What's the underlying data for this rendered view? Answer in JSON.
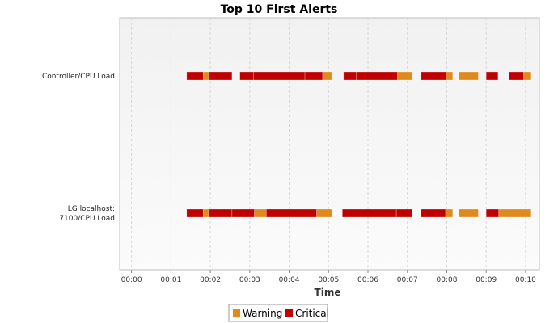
{
  "chart_data": {
    "type": "timeline",
    "title": "Top 10 First Alerts",
    "xlabel": "Time",
    "ylabel": "",
    "x_ticks": [
      "00:00",
      "00:01",
      "00:02",
      "00:03",
      "00:04",
      "00:05",
      "00:06",
      "00:07",
      "00:08",
      "00:09",
      "00:10"
    ],
    "x_range_minutes": [
      -0.3,
      10.35
    ],
    "grid": true,
    "legend_position": "bottom",
    "legend": [
      {
        "name": "Warning",
        "color": "#e08a1e"
      },
      {
        "name": "Critical",
        "color": "#c00000"
      }
    ],
    "categories": [
      {
        "label_lines": [
          "Controller/CPU Load"
        ],
        "segments": [
          {
            "start": 1.4,
            "end": 1.82,
            "status": "Critical"
          },
          {
            "start": 1.82,
            "end": 1.96,
            "status": "Warning"
          },
          {
            "start": 1.96,
            "end": 2.55,
            "status": "Critical"
          },
          {
            "start": 2.75,
            "end": 3.1,
            "status": "Critical"
          },
          {
            "start": 3.1,
            "end": 4.4,
            "status": "Critical"
          },
          {
            "start": 4.4,
            "end": 4.85,
            "status": "Critical"
          },
          {
            "start": 4.85,
            "end": 5.08,
            "status": "Warning"
          },
          {
            "start": 5.38,
            "end": 5.7,
            "status": "Critical"
          },
          {
            "start": 5.7,
            "end": 6.15,
            "status": "Critical"
          },
          {
            "start": 6.15,
            "end": 6.75,
            "status": "Critical"
          },
          {
            "start": 6.75,
            "end": 7.12,
            "status": "Warning"
          },
          {
            "start": 7.35,
            "end": 7.98,
            "status": "Critical"
          },
          {
            "start": 7.98,
            "end": 8.15,
            "status": "Warning"
          },
          {
            "start": 8.3,
            "end": 8.8,
            "status": "Warning"
          },
          {
            "start": 9.0,
            "end": 9.3,
            "status": "Critical"
          },
          {
            "start": 9.58,
            "end": 9.95,
            "status": "Critical"
          },
          {
            "start": 9.95,
            "end": 10.12,
            "status": "Warning"
          }
        ]
      },
      {
        "label_lines": [
          "LG localhost:",
          "7100/CPU Load"
        ],
        "segments": [
          {
            "start": 1.4,
            "end": 1.82,
            "status": "Critical"
          },
          {
            "start": 1.82,
            "end": 1.96,
            "status": "Warning"
          },
          {
            "start": 1.96,
            "end": 2.55,
            "status": "Critical"
          },
          {
            "start": 2.55,
            "end": 3.12,
            "status": "Critical"
          },
          {
            "start": 3.12,
            "end": 3.42,
            "status": "Warning"
          },
          {
            "start": 3.42,
            "end": 4.7,
            "status": "Critical"
          },
          {
            "start": 4.7,
            "end": 5.08,
            "status": "Warning"
          },
          {
            "start": 5.35,
            "end": 5.72,
            "status": "Critical"
          },
          {
            "start": 5.72,
            "end": 6.15,
            "status": "Critical"
          },
          {
            "start": 6.15,
            "end": 6.72,
            "status": "Critical"
          },
          {
            "start": 6.72,
            "end": 7.12,
            "status": "Critical"
          },
          {
            "start": 7.35,
            "end": 7.97,
            "status": "Critical"
          },
          {
            "start": 7.97,
            "end": 8.15,
            "status": "Warning"
          },
          {
            "start": 8.3,
            "end": 8.8,
            "status": "Warning"
          },
          {
            "start": 9.0,
            "end": 9.32,
            "status": "Critical"
          },
          {
            "start": 9.32,
            "end": 10.12,
            "status": "Warning"
          }
        ]
      }
    ]
  }
}
